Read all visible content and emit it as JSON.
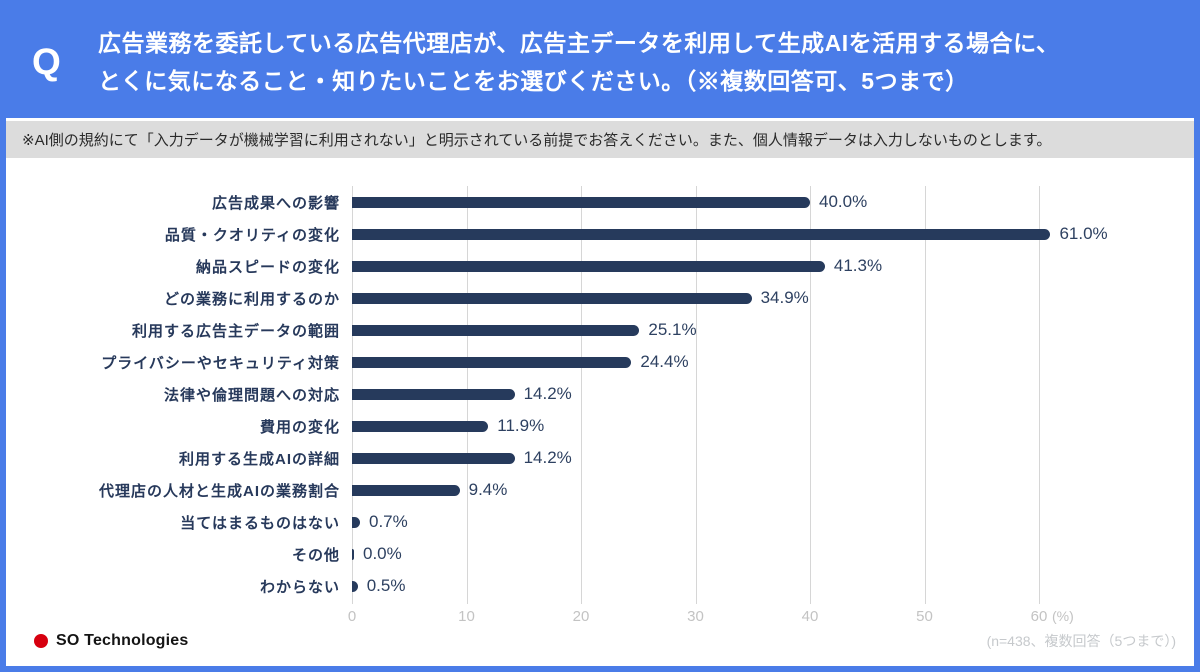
{
  "header": {
    "q_label": "Q",
    "title_line1": "広告業務を委託している広告代理店が、広告主データを利用して生成AIを活用する場合に、",
    "title_line2": "とくに気になること・知りたいことをお選びください。（※複数回答可、5つまで）"
  },
  "disclaimer": "※AI側の規約にて「入力データが機械学習に利用されない」と明示されている前提でお答えください。また、個人情報データは入力しないものとします。",
  "chart_data": {
    "type": "bar",
    "orientation": "horizontal",
    "categories": [
      "広告成果への影響",
      "品質・クオリティの変化",
      "納品スピードの変化",
      "どの業務に利用するのか",
      "利用する広告主データの範囲",
      "プライバシーやセキュリティ対策",
      "法律や倫理問題への対応",
      "費用の変化",
      "利用する生成AIの詳細",
      "代理店の人材と生成AIの業務割合",
      "当てはまるものはない",
      "その他",
      "わからない"
    ],
    "values": [
      40.0,
      61.0,
      41.3,
      34.9,
      25.1,
      24.4,
      14.2,
      11.9,
      14.2,
      9.4,
      0.7,
      0.0,
      0.5
    ],
    "value_labels": [
      "40.0%",
      "61.0%",
      "41.3%",
      "34.9%",
      "25.1%",
      "24.4%",
      "14.2%",
      "11.9%",
      "14.2%",
      "9.4%",
      "0.7%",
      "0.0%",
      "0.5%"
    ],
    "x_ticks": [
      0,
      10,
      20,
      30,
      40,
      50,
      60
    ],
    "x_unit": "(%)",
    "xlim": [
      0,
      64
    ],
    "grid": true,
    "legend": false,
    "bar_color": "#263a5c"
  },
  "footer": {
    "logo_text": "SO Technologies",
    "note": "(n=438、複数回答（5つまで）)"
  },
  "colors": {
    "accent_blue": "#4a7ce8",
    "bar_navy": "#263a5c",
    "disclaimer_bg": "#dcdcdc",
    "logo_red": "#d7000f"
  }
}
